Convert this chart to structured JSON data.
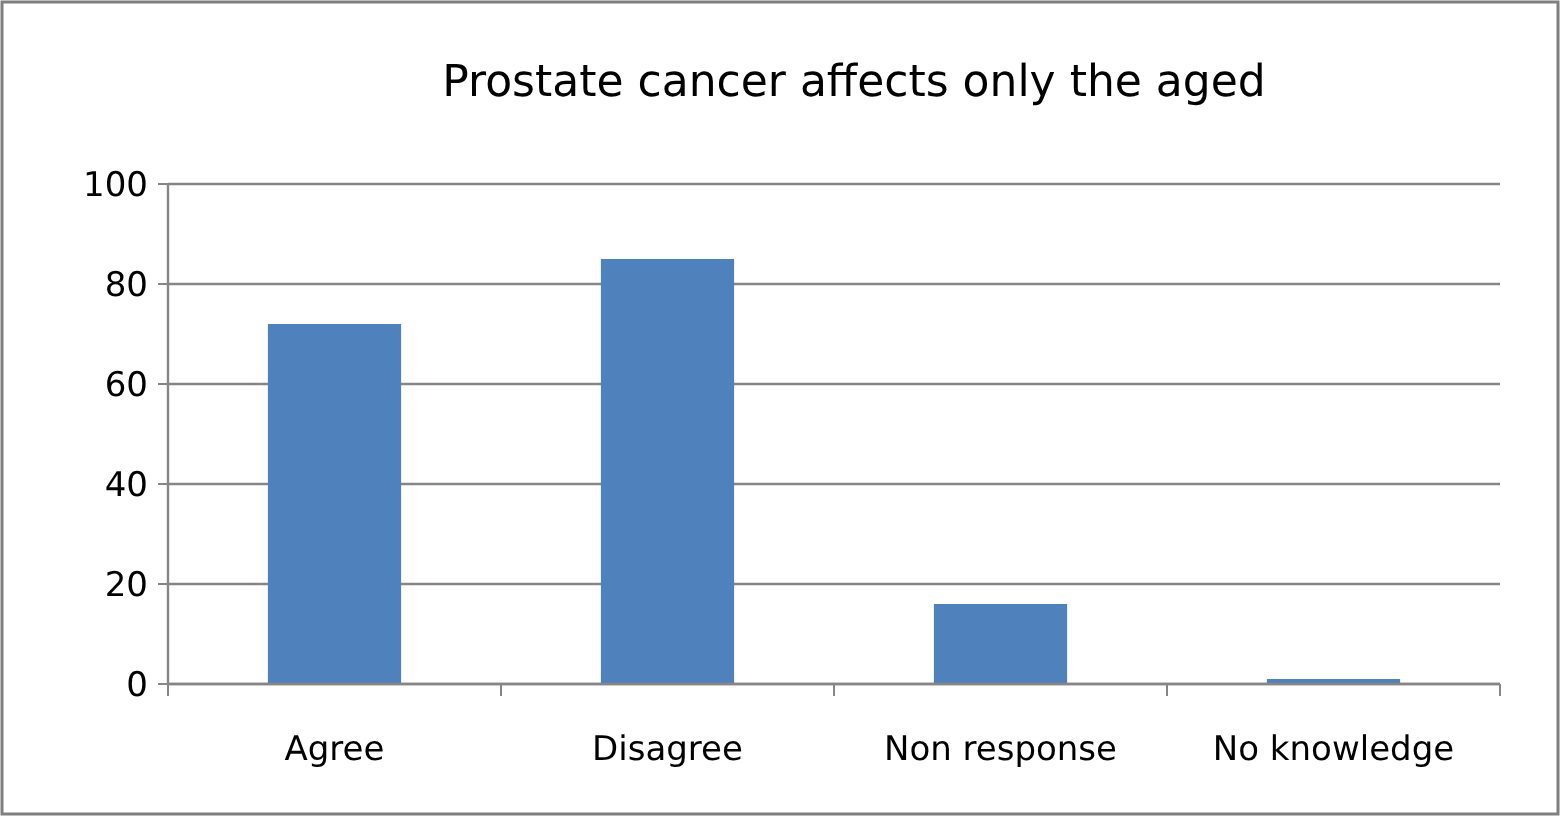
{
  "chart_data": {
    "type": "bar",
    "title": "Prostate cancer affects only the aged",
    "categories": [
      "Agree",
      "Disagree",
      "Non response",
      "No knowledge"
    ],
    "values": [
      72,
      85,
      16,
      1
    ],
    "color": "#4f81bd",
    "ylim": [
      0,
      100
    ],
    "yticks": [
      0,
      20,
      40,
      60,
      80,
      100
    ],
    "grid": "y"
  }
}
